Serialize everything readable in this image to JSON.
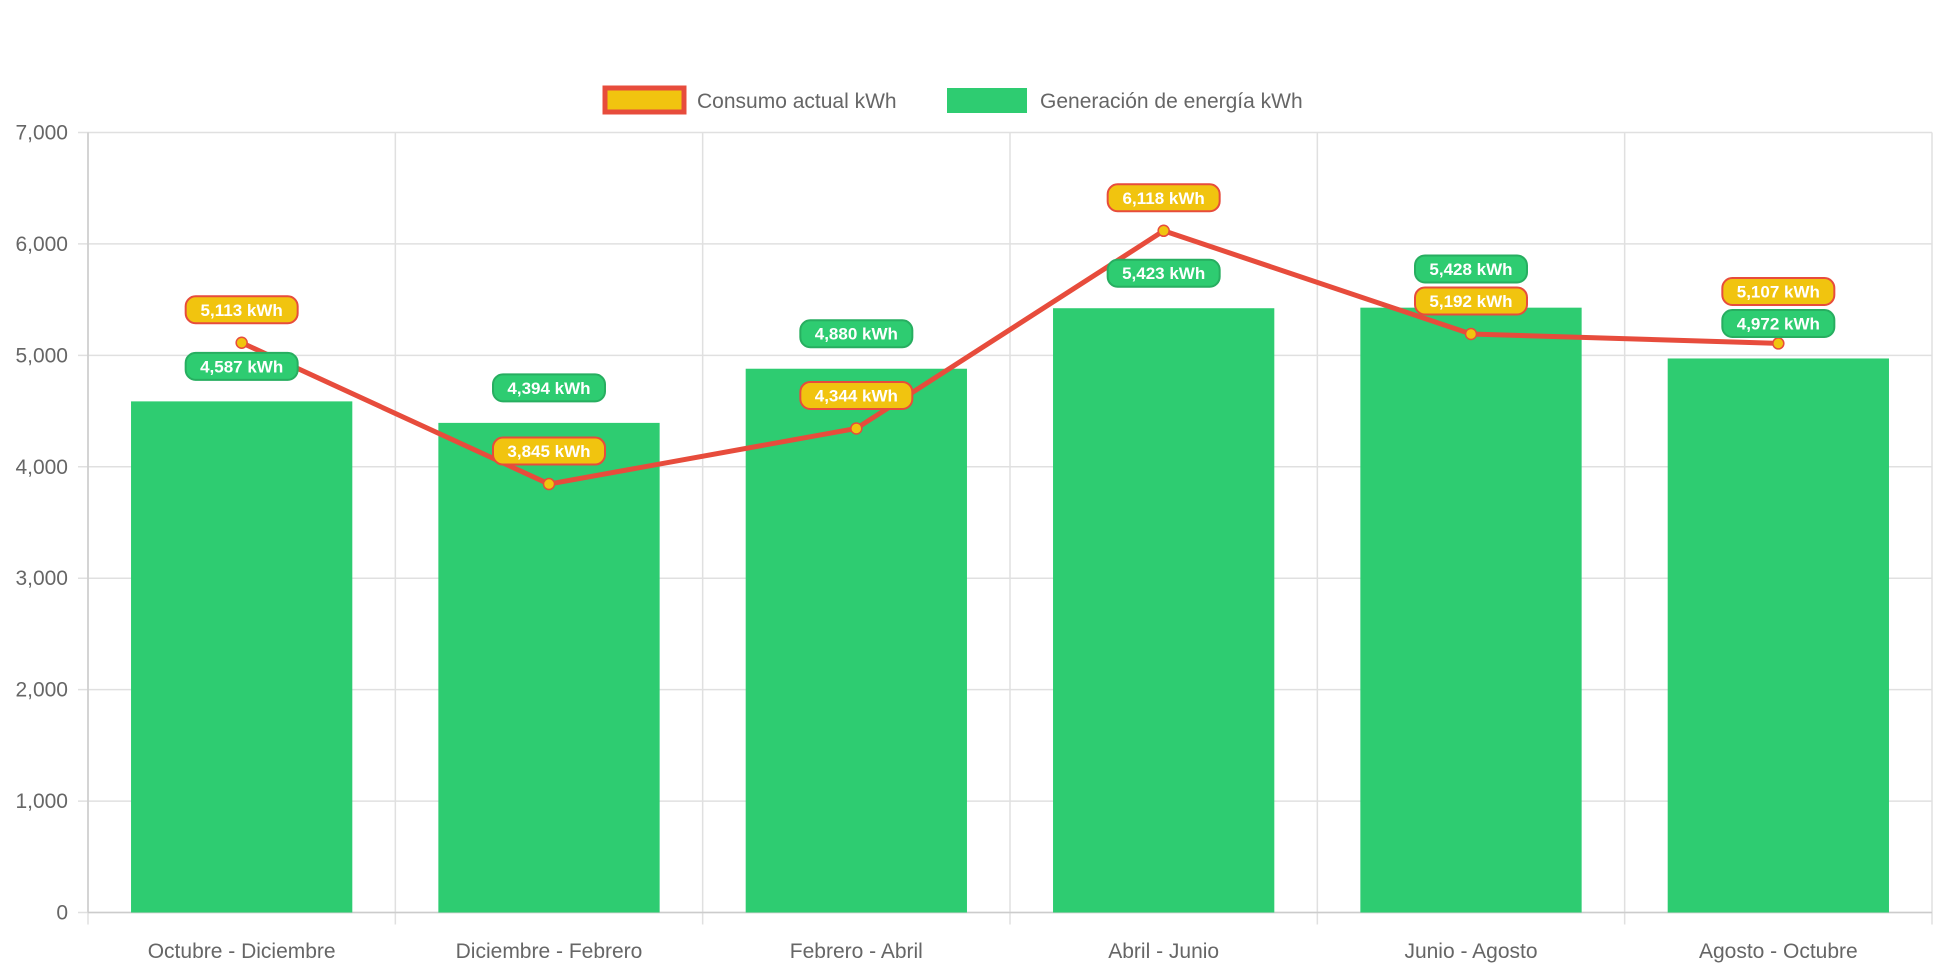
{
  "chart_data": {
    "type": "bar",
    "title": "",
    "xlabel": "",
    "ylabel": "",
    "ylim": [
      0,
      7000
    ],
    "yticks": [
      "0",
      "1,000",
      "2,000",
      "3,000",
      "4,000",
      "5,000",
      "6,000",
      "7,000"
    ],
    "grid": true,
    "legend_position": "top",
    "categories": [
      "Octubre - Diciembre",
      "Diciembre - Febrero",
      "Febrero - Abril",
      "Abril - Junio",
      "Junio - Agosto",
      "Agosto - Octubre"
    ],
    "series": [
      {
        "name": "Consumo actual kWh",
        "type": "line",
        "values": [
          5113,
          3845,
          4344,
          6118,
          5192,
          5107
        ],
        "labels": [
          "5,113 kWh",
          "3,845 kWh",
          "4,344 kWh",
          "6,118 kWh",
          "5,192 kWh",
          "5,107 kWh"
        ],
        "color": "#e74c3c",
        "fill": "#f1c40f"
      },
      {
        "name": "Generación de energía kWh",
        "type": "bar",
        "values": [
          4587,
          4394,
          4880,
          5423,
          5428,
          4972
        ],
        "labels": [
          "4,587 kWh",
          "4,394 kWh",
          "4,880 kWh",
          "5,423 kWh",
          "5,428 kWh",
          "4,972 kWh"
        ],
        "color": "#2ecc71",
        "border": "#27ae60"
      }
    ]
  }
}
